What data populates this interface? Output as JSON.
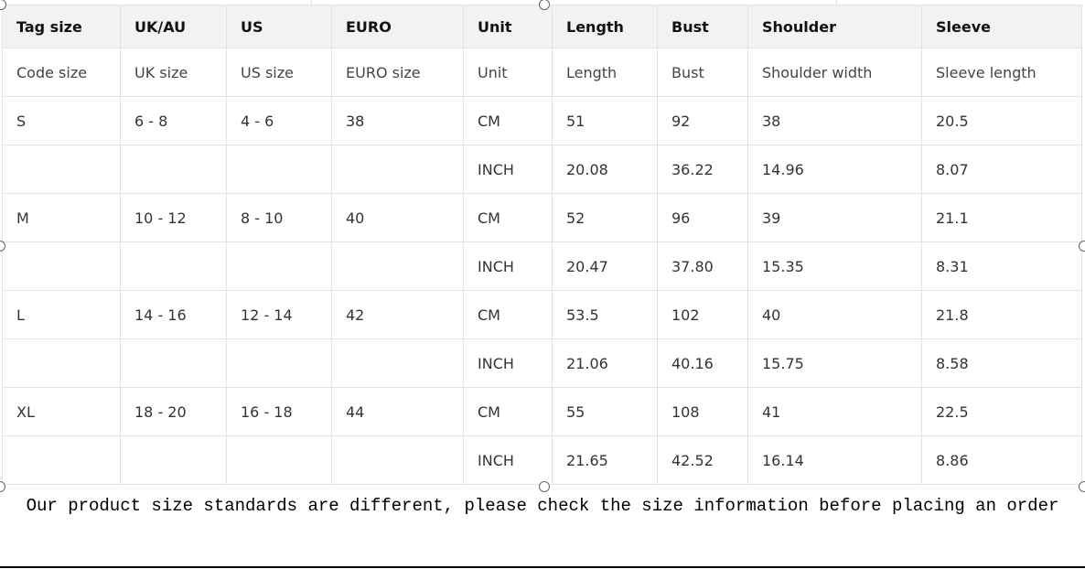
{
  "table": {
    "headers": [
      "Tag size",
      "UK/AU",
      "US",
      "EURO",
      "Unit",
      "Length",
      "Bust",
      "Shoulder",
      "Sleeve"
    ],
    "subheaders": [
      "Code size",
      "UK size",
      "US size",
      "EURO size",
      "Unit",
      "Length",
      "Bust",
      "Shoulder width",
      "Sleeve length"
    ],
    "rows": [
      [
        "S",
        "6 - 8",
        "4 - 6",
        "38",
        "CM",
        "51",
        "92",
        "38",
        "20.5"
      ],
      [
        "",
        "",
        "",
        "",
        "INCH",
        "20.08",
        "36.22",
        "14.96",
        "8.07"
      ],
      [
        "M",
        "10 - 12",
        "8 - 10",
        "40",
        "CM",
        "52",
        "96",
        "39",
        "21.1"
      ],
      [
        "",
        "",
        "",
        "",
        "INCH",
        "20.47",
        "37.80",
        "15.35",
        "8.31"
      ],
      [
        "L",
        "14 - 16",
        "12 - 14",
        "42",
        "CM",
        "53.5",
        "102",
        "40",
        "21.8"
      ],
      [
        "",
        "",
        "",
        "",
        "INCH",
        "21.06",
        "40.16",
        "15.75",
        "8.58"
      ],
      [
        "XL",
        "18 - 20",
        "16 - 18",
        "44",
        "CM",
        "55",
        "108",
        "41",
        "22.5"
      ],
      [
        "",
        "",
        "",
        "",
        "INCH",
        "21.65",
        "42.52",
        "16.14",
        "8.86"
      ]
    ]
  },
  "caption": "Our product size standards are different, please check the size information before placing an order"
}
